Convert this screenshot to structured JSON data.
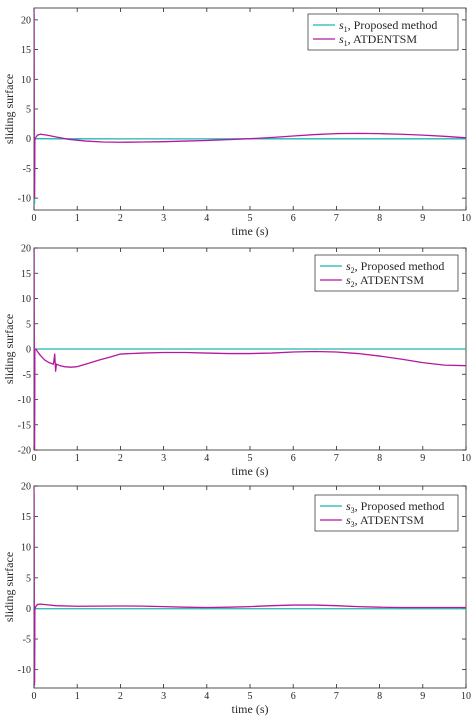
{
  "colors": {
    "proposed": "#1fb5b0",
    "atdentsm": "#b5179e",
    "axis": "#262626"
  },
  "chart_data": [
    {
      "type": "line",
      "xlabel": "time (s)",
      "ylabel": "sliding surface",
      "xlim": [
        0,
        10
      ],
      "ylim": [
        -12,
        22
      ],
      "xticks": [
        "0",
        "1",
        "2",
        "3",
        "4",
        "5",
        "6",
        "7",
        "8",
        "9",
        "10"
      ],
      "yticks": [
        "-10",
        "-5",
        "0",
        "5",
        "10",
        "15",
        "20"
      ],
      "ytick_values": [
        -10,
        -5,
        0,
        5,
        10,
        15,
        20
      ],
      "legend": {
        "position": "top-right",
        "entries": [
          {
            "symbol": "s",
            "sub": "1",
            "text": ", Proposed method"
          },
          {
            "symbol": "s",
            "sub": "1",
            "text": ", ATDENTSM"
          }
        ]
      },
      "series": [
        {
          "name": "s1, Proposed method",
          "color_key": "proposed",
          "x": [
            0,
            0.005,
            0.012,
            0.02,
            0.03,
            0.05,
            0.1,
            0.2,
            0.5,
            1,
            2,
            3,
            4,
            5,
            6,
            7,
            8,
            9,
            10
          ],
          "y": [
            21,
            0,
            -11,
            0,
            -0.1,
            0,
            0,
            0,
            -0.02,
            -0.02,
            -0.03,
            -0.03,
            -0.03,
            -0.02,
            -0.02,
            -0.02,
            -0.02,
            -0.02,
            -0.02
          ]
        },
        {
          "name": "s1, ATDENTSM",
          "color_key": "atdentsm",
          "x": [
            0,
            0.005,
            0.012,
            0.02,
            0.04,
            0.08,
            0.15,
            0.3,
            0.5,
            0.8,
            1.2,
            1.6,
            2,
            2.5,
            3,
            3.5,
            4,
            4.5,
            5,
            5.5,
            6,
            6.5,
            7,
            7.5,
            8,
            8.5,
            9,
            9.5,
            10
          ],
          "y": [
            22,
            0,
            -10,
            0,
            0.2,
            0.6,
            0.75,
            0.6,
            0.3,
            -0.1,
            -0.4,
            -0.55,
            -0.6,
            -0.55,
            -0.5,
            -0.4,
            -0.3,
            -0.15,
            0,
            0.2,
            0.45,
            0.7,
            0.85,
            0.9,
            0.85,
            0.75,
            0.6,
            0.4,
            0.15
          ]
        }
      ]
    },
    {
      "type": "line",
      "xlabel": "time (s)",
      "ylabel": "sliding surface",
      "xlim": [
        0,
        10
      ],
      "ylim": [
        -20,
        20
      ],
      "xticks": [
        "0",
        "1",
        "2",
        "3",
        "4",
        "5",
        "6",
        "7",
        "8",
        "9",
        "10"
      ],
      "yticks": [
        "-20",
        "-15",
        "-10",
        "-5",
        "0",
        "5",
        "10",
        "15",
        "20"
      ],
      "ytick_values": [
        -20,
        -15,
        -10,
        -5,
        0,
        5,
        10,
        15,
        20
      ],
      "legend": {
        "position": "top-right",
        "entries": [
          {
            "symbol": "s",
            "sub": "2",
            "text": ", Proposed method"
          },
          {
            "symbol": "s",
            "sub": "2",
            "text": ", ATDENTSM"
          }
        ]
      },
      "series": [
        {
          "name": "s2, Proposed method",
          "color_key": "proposed",
          "x": [
            0,
            0.005,
            0.012,
            0.02,
            0.03,
            0.05,
            0.1,
            1,
            2,
            3,
            4,
            5,
            6,
            7,
            8,
            9,
            10
          ],
          "y": [
            20,
            0,
            -20,
            0,
            -0.1,
            0,
            0,
            0,
            0,
            0,
            0,
            0,
            0,
            0,
            0,
            0,
            0
          ]
        },
        {
          "name": "s2, ATDENTSM",
          "color_key": "atdentsm",
          "x": [
            0,
            0.005,
            0.012,
            0.02,
            0.04,
            0.08,
            0.15,
            0.25,
            0.35,
            0.45,
            0.48,
            0.5,
            0.52,
            0.6,
            0.7,
            0.85,
            1,
            1.2,
            1.5,
            1.8,
            2,
            2.5,
            3,
            3.5,
            4,
            4.5,
            5,
            5.5,
            6,
            6.5,
            7,
            7.5,
            8,
            8.5,
            9,
            9.5,
            10
          ],
          "y": [
            20,
            0,
            -20,
            0,
            0,
            -0.5,
            -1.3,
            -2.2,
            -2.7,
            -3.0,
            -1.0,
            -4.4,
            -3.0,
            -3.3,
            -3.5,
            -3.6,
            -3.5,
            -3.0,
            -2.2,
            -1.5,
            -1.0,
            -0.8,
            -0.7,
            -0.7,
            -0.8,
            -0.9,
            -0.9,
            -0.8,
            -0.6,
            -0.5,
            -0.6,
            -0.9,
            -1.4,
            -2.0,
            -2.7,
            -3.2,
            -3.3
          ]
        }
      ]
    },
    {
      "type": "line",
      "xlabel": "time (s)",
      "ylabel": "sliding surface",
      "xlim": [
        0,
        10
      ],
      "ylim": [
        -13,
        20
      ],
      "xticks": [
        "0",
        "1",
        "2",
        "3",
        "4",
        "5",
        "6",
        "7",
        "8",
        "9",
        "10"
      ],
      "yticks": [
        "-10",
        "-5",
        "0",
        "5",
        "10",
        "15",
        "20"
      ],
      "ytick_values": [
        -10,
        -5,
        0,
        5,
        10,
        15,
        20
      ],
      "legend": {
        "position": "top-right",
        "entries": [
          {
            "symbol": "s",
            "sub": "3",
            "text": ", Proposed method"
          },
          {
            "symbol": "s",
            "sub": "3",
            "text": ", ATDENTSM"
          }
        ]
      },
      "series": [
        {
          "name": "s3, Proposed method",
          "color_key": "proposed",
          "x": [
            0,
            0.005,
            0.012,
            0.02,
            0.03,
            0.05,
            0.1,
            1,
            2,
            3,
            4,
            5,
            6,
            7,
            8,
            9,
            10
          ],
          "y": [
            19,
            0,
            -12,
            0,
            -0.1,
            0,
            -0.05,
            -0.05,
            -0.05,
            -0.05,
            -0.05,
            -0.05,
            -0.05,
            -0.05,
            -0.05,
            -0.05,
            -0.05
          ]
        },
        {
          "name": "s3, ATDENTSM",
          "color_key": "atdentsm",
          "x": [
            0,
            0.005,
            0.012,
            0.02,
            0.04,
            0.08,
            0.15,
            0.3,
            0.5,
            1,
            1.5,
            2,
            2.5,
            3,
            3.5,
            4,
            4.5,
            5,
            5.5,
            6,
            6.5,
            7,
            7.5,
            8,
            8.5,
            9,
            9.5,
            10
          ],
          "y": [
            20,
            0,
            -12.5,
            0,
            0.3,
            0.65,
            0.7,
            0.6,
            0.45,
            0.35,
            0.38,
            0.4,
            0.38,
            0.3,
            0.2,
            0.15,
            0.2,
            0.3,
            0.45,
            0.55,
            0.55,
            0.45,
            0.3,
            0.2,
            0.15,
            0.15,
            0.15,
            0.15
          ]
        }
      ]
    }
  ]
}
